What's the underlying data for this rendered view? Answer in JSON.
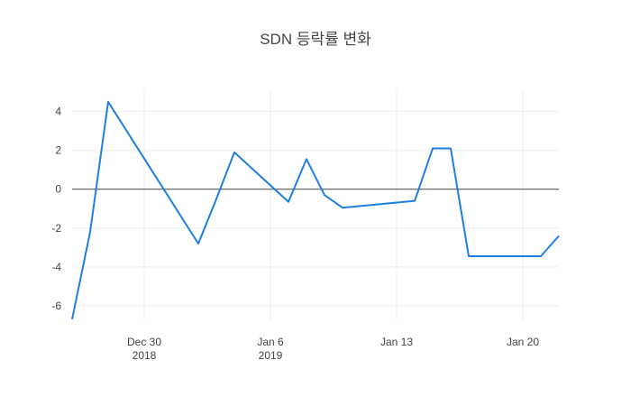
{
  "chart_data": {
    "type": "line",
    "title": "SDN 등락률 변화",
    "x": [
      "2018-12-26",
      "2018-12-27",
      "2018-12-28",
      "2019-01-02",
      "2019-01-03",
      "2019-01-04",
      "2019-01-07",
      "2019-01-08",
      "2019-01-09",
      "2019-01-10",
      "2019-01-14",
      "2019-01-15",
      "2019-01-16",
      "2019-01-17",
      "2019-01-21",
      "2019-01-22"
    ],
    "series": [
      {
        "color": "#1f7fe0",
        "values": [
          -6.7,
          -2.2,
          4.5,
          -2.8,
          -0.5,
          1.9,
          -0.65,
          1.55,
          -0.3,
          -0.95,
          -0.6,
          2.1,
          2.1,
          -3.45,
          -3.45,
          -2.4
        ]
      }
    ],
    "xlim": [
      "2018-12-26",
      "2019-01-22"
    ],
    "xticks": [
      {
        "value": "2018-12-30",
        "label": "Dec 30",
        "year": "2018"
      },
      {
        "value": "2019-01-06",
        "label": "Jan 6",
        "year": "2019"
      },
      {
        "value": "2019-01-13",
        "label": "Jan 13"
      },
      {
        "value": "2019-01-20",
        "label": "Jan 20"
      }
    ],
    "ylim": [
      -6.75,
      5.1
    ],
    "yticks": [
      -6,
      -4,
      -2,
      0,
      2,
      4
    ],
    "grid": true,
    "zeroline": true
  }
}
